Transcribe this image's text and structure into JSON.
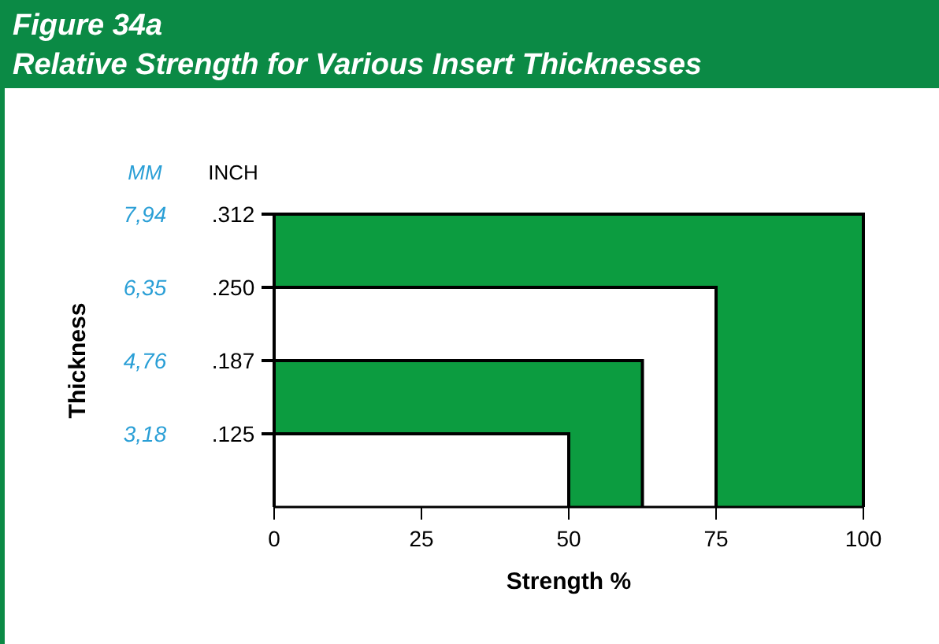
{
  "chart_data": {
    "type": "bar",
    "orientation": "horizontal",
    "title": "Figure 34a",
    "subtitle": "Relative Strength for Various Insert Thicknesses",
    "xlabel": "Strength %",
    "categories": [
      ".312",
      ".250",
      ".187",
      ".125"
    ],
    "values": [
      100,
      75,
      62.5,
      50
    ],
    "colors": [
      "#0c9c40",
      "#ffffff",
      "#0c9c40",
      "#ffffff"
    ],
    "xlim": [
      0,
      100
    ],
    "xticks": [
      0,
      25,
      50,
      75,
      100
    ],
    "annotations": [
      "MM",
      "INCH",
      "7,94",
      "6,35",
      "4,76",
      "3,18",
      "Thickness"
    ]
  }
}
